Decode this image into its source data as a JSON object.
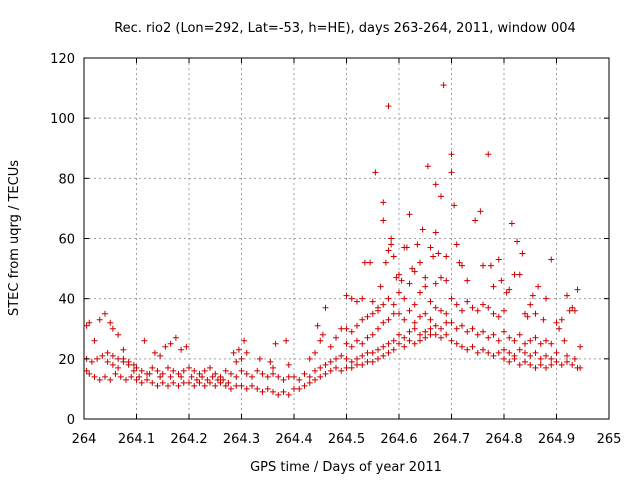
{
  "chart_data": {
    "type": "scatter",
    "title": "Rec. rio2 (Lon=292, Lat=-53, h=HE), days 263-264, 2011, window 004",
    "xlabel": "GPS time / Days of year 2011",
    "ylabel": "STEC from uqrg / TECUs",
    "xlim": [
      264,
      265
    ],
    "ylim": [
      0,
      120
    ],
    "x_ticks": [
      264,
      264.1,
      264.2,
      264.3,
      264.4,
      264.5,
      264.6,
      264.7,
      264.8,
      264.9,
      265
    ],
    "x_tick_labels": [
      "264",
      "264.1",
      "264.2",
      "264.3",
      "264.4",
      "264.5",
      "264.6",
      "264.7",
      "264.8",
      "264.9",
      "265"
    ],
    "y_ticks": [
      0,
      20,
      40,
      60,
      80,
      100,
      120
    ],
    "y_tick_labels": [
      "0",
      "20",
      "40",
      "60",
      "80",
      "100",
      "120"
    ],
    "grid": true,
    "marker": "+",
    "color": "#cc0000",
    "points": [
      [
        264.005,
        31
      ],
      [
        264.01,
        32
      ],
      [
        264.02,
        26
      ],
      [
        264.03,
        33
      ],
      [
        264.04,
        35
      ],
      [
        264.05,
        32
      ],
      [
        264.055,
        30
      ],
      [
        264.065,
        28
      ],
      [
        264.075,
        23
      ],
      [
        264.005,
        20
      ],
      [
        264.015,
        19
      ],
      [
        264.025,
        20
      ],
      [
        264.035,
        21
      ],
      [
        264.045,
        22
      ],
      [
        264.055,
        21
      ],
      [
        264.065,
        20
      ],
      [
        264.075,
        20
      ],
      [
        264.085,
        19
      ],
      [
        264.095,
        18
      ],
      [
        264.005,
        16
      ],
      [
        264.01,
        15
      ],
      [
        264.02,
        14
      ],
      [
        264.03,
        13
      ],
      [
        264.04,
        14
      ],
      [
        264.05,
        13
      ],
      [
        264.06,
        15
      ],
      [
        264.07,
        14
      ],
      [
        264.08,
        13
      ],
      [
        264.09,
        14
      ],
      [
        264.045,
        19
      ],
      [
        264.055,
        18
      ],
      [
        264.065,
        17
      ],
      [
        264.075,
        19
      ],
      [
        264.085,
        18
      ],
      [
        264.095,
        16
      ],
      [
        264.1,
        17
      ],
      [
        264.11,
        16
      ],
      [
        264.12,
        15
      ],
      [
        264.13,
        17
      ],
      [
        264.14,
        16
      ],
      [
        264.15,
        15
      ],
      [
        264.16,
        17
      ],
      [
        264.17,
        16
      ],
      [
        264.18,
        15
      ],
      [
        264.19,
        16
      ],
      [
        264.1,
        13
      ],
      [
        264.11,
        12
      ],
      [
        264.12,
        13
      ],
      [
        264.13,
        12
      ],
      [
        264.14,
        11
      ],
      [
        264.15,
        12
      ],
      [
        264.16,
        11
      ],
      [
        264.17,
        12
      ],
      [
        264.18,
        11
      ],
      [
        264.19,
        12
      ],
      [
        264.115,
        26
      ],
      [
        264.135,
        22
      ],
      [
        264.145,
        21
      ],
      [
        264.155,
        24
      ],
      [
        264.165,
        25
      ],
      [
        264.175,
        27
      ],
      [
        264.185,
        23
      ],
      [
        264.195,
        24
      ],
      [
        264.105,
        14
      ],
      [
        264.125,
        15
      ],
      [
        264.145,
        14
      ],
      [
        264.165,
        14
      ],
      [
        264.185,
        14
      ],
      [
        264.2,
        17
      ],
      [
        264.21,
        16
      ],
      [
        264.22,
        15
      ],
      [
        264.23,
        16
      ],
      [
        264.24,
        17
      ],
      [
        264.25,
        15
      ],
      [
        264.26,
        14
      ],
      [
        264.27,
        16
      ],
      [
        264.28,
        15
      ],
      [
        264.29,
        14
      ],
      [
        264.2,
        12
      ],
      [
        264.21,
        11
      ],
      [
        264.22,
        12
      ],
      [
        264.23,
        11
      ],
      [
        264.24,
        12
      ],
      [
        264.25,
        11
      ],
      [
        264.26,
        12
      ],
      [
        264.27,
        11
      ],
      [
        264.28,
        10
      ],
      [
        264.29,
        11
      ],
      [
        264.205,
        14
      ],
      [
        264.215,
        13
      ],
      [
        264.225,
        14
      ],
      [
        264.235,
        13
      ],
      [
        264.245,
        14
      ],
      [
        264.255,
        13
      ],
      [
        264.265,
        13
      ],
      [
        264.275,
        12
      ],
      [
        264.285,
        22
      ],
      [
        264.295,
        23
      ],
      [
        264.305,
        26
      ],
      [
        264.31,
        22
      ],
      [
        264.29,
        19
      ],
      [
        264.3,
        20
      ],
      [
        264.3,
        16
      ],
      [
        264.31,
        15
      ],
      [
        264.32,
        14
      ],
      [
        264.33,
        16
      ],
      [
        264.34,
        15
      ],
      [
        264.35,
        14
      ],
      [
        264.36,
        15
      ],
      [
        264.37,
        14
      ],
      [
        264.38,
        13
      ],
      [
        264.39,
        14
      ],
      [
        264.3,
        11
      ],
      [
        264.31,
        10
      ],
      [
        264.32,
        11
      ],
      [
        264.33,
        10
      ],
      [
        264.34,
        9
      ],
      [
        264.35,
        10
      ],
      [
        264.36,
        9
      ],
      [
        264.37,
        8
      ],
      [
        264.38,
        9
      ],
      [
        264.39,
        8
      ],
      [
        264.335,
        20
      ],
      [
        264.355,
        19
      ],
      [
        264.365,
        25
      ],
      [
        264.385,
        26
      ],
      [
        264.36,
        17
      ],
      [
        264.39,
        18
      ],
      [
        264.4,
        14
      ],
      [
        264.41,
        13
      ],
      [
        264.42,
        15
      ],
      [
        264.43,
        14
      ],
      [
        264.44,
        16
      ],
      [
        264.45,
        17
      ],
      [
        264.46,
        18
      ],
      [
        264.47,
        19
      ],
      [
        264.48,
        20
      ],
      [
        264.49,
        21
      ],
      [
        264.4,
        10
      ],
      [
        264.41,
        10
      ],
      [
        264.42,
        11
      ],
      [
        264.43,
        12
      ],
      [
        264.44,
        13
      ],
      [
        264.45,
        14
      ],
      [
        264.46,
        15
      ],
      [
        264.47,
        16
      ],
      [
        264.48,
        17
      ],
      [
        264.49,
        16
      ],
      [
        264.43,
        20
      ],
      [
        264.44,
        22
      ],
      [
        264.45,
        26
      ],
      [
        264.455,
        28
      ],
      [
        264.46,
        37
      ],
      [
        264.47,
        24
      ],
      [
        264.48,
        27
      ],
      [
        264.49,
        30
      ],
      [
        264.445,
        31
      ],
      [
        264.5,
        41
      ],
      [
        264.51,
        40
      ],
      [
        264.52,
        39
      ],
      [
        264.53,
        40
      ],
      [
        264.535,
        52
      ],
      [
        264.545,
        52
      ],
      [
        264.55,
        39
      ],
      [
        264.555,
        82
      ],
      [
        264.56,
        37
      ],
      [
        264.565,
        44
      ],
      [
        264.57,
        66
      ],
      [
        264.57,
        72
      ],
      [
        264.575,
        52
      ],
      [
        264.58,
        56
      ],
      [
        264.58,
        104
      ],
      [
        264.585,
        58
      ],
      [
        264.585,
        60
      ],
      [
        264.59,
        54
      ],
      [
        264.595,
        47
      ],
      [
        264.5,
        30
      ],
      [
        264.51,
        29
      ],
      [
        264.52,
        31
      ],
      [
        264.53,
        33
      ],
      [
        264.54,
        34
      ],
      [
        264.55,
        35
      ],
      [
        264.56,
        36
      ],
      [
        264.57,
        38
      ],
      [
        264.58,
        40
      ],
      [
        264.59,
        38
      ],
      [
        264.5,
        25
      ],
      [
        264.51,
        24
      ],
      [
        264.52,
        26
      ],
      [
        264.53,
        25
      ],
      [
        264.54,
        27
      ],
      [
        264.55,
        28
      ],
      [
        264.56,
        30
      ],
      [
        264.57,
        32
      ],
      [
        264.58,
        33
      ],
      [
        264.59,
        35
      ],
      [
        264.5,
        20
      ],
      [
        264.51,
        19
      ],
      [
        264.52,
        20
      ],
      [
        264.53,
        21
      ],
      [
        264.54,
        22
      ],
      [
        264.55,
        22
      ],
      [
        264.56,
        23
      ],
      [
        264.57,
        24
      ],
      [
        264.58,
        25
      ],
      [
        264.59,
        26
      ],
      [
        264.5,
        17
      ],
      [
        264.51,
        17
      ],
      [
        264.52,
        18
      ],
      [
        264.53,
        18
      ],
      [
        264.54,
        19
      ],
      [
        264.55,
        19
      ],
      [
        264.56,
        20
      ],
      [
        264.57,
        21
      ],
      [
        264.58,
        22
      ],
      [
        264.59,
        23
      ],
      [
        264.6,
        48
      ],
      [
        264.605,
        46
      ],
      [
        264.61,
        57
      ],
      [
        264.615,
        57
      ],
      [
        264.62,
        68
      ],
      [
        264.625,
        50
      ],
      [
        264.63,
        49
      ],
      [
        264.635,
        58
      ],
      [
        264.64,
        52
      ],
      [
        264.645,
        63
      ],
      [
        264.65,
        47
      ],
      [
        264.655,
        84
      ],
      [
        264.66,
        57
      ],
      [
        264.665,
        54
      ],
      [
        264.67,
        78
      ],
      [
        264.67,
        62
      ],
      [
        264.675,
        55
      ],
      [
        264.68,
        74
      ],
      [
        264.685,
        111
      ],
      [
        264.69,
        54
      ],
      [
        264.6,
        42
      ],
      [
        264.61,
        40
      ],
      [
        264.62,
        45
      ],
      [
        264.63,
        38
      ],
      [
        264.64,
        42
      ],
      [
        264.65,
        44
      ],
      [
        264.66,
        39
      ],
      [
        264.67,
        45
      ],
      [
        264.68,
        47
      ],
      [
        264.69,
        46
      ],
      [
        264.6,
        35
      ],
      [
        264.61,
        33
      ],
      [
        264.62,
        36
      ],
      [
        264.63,
        32
      ],
      [
        264.64,
        34
      ],
      [
        264.65,
        35
      ],
      [
        264.66,
        33
      ],
      [
        264.67,
        37
      ],
      [
        264.68,
        36
      ],
      [
        264.69,
        35
      ],
      [
        264.6,
        28
      ],
      [
        264.61,
        27
      ],
      [
        264.62,
        29
      ],
      [
        264.63,
        30
      ],
      [
        264.64,
        28
      ],
      [
        264.65,
        29
      ],
      [
        264.66,
        30
      ],
      [
        264.67,
        31
      ],
      [
        264.68,
        30
      ],
      [
        264.69,
        32
      ],
      [
        264.6,
        25
      ],
      [
        264.61,
        24
      ],
      [
        264.62,
        26
      ],
      [
        264.63,
        25
      ],
      [
        264.64,
        26
      ],
      [
        264.65,
        27
      ],
      [
        264.66,
        28
      ],
      [
        264.67,
        28
      ],
      [
        264.68,
        27
      ],
      [
        264.69,
        28
      ],
      [
        264.7,
        88
      ],
      [
        264.7,
        82
      ],
      [
        264.705,
        71
      ],
      [
        264.71,
        58
      ],
      [
        264.715,
        52
      ],
      [
        264.72,
        51
      ],
      [
        264.73,
        46
      ],
      [
        264.745,
        66
      ],
      [
        264.755,
        69
      ],
      [
        264.76,
        51
      ],
      [
        264.77,
        88
      ],
      [
        264.775,
        51
      ],
      [
        264.78,
        44
      ],
      [
        264.79,
        53
      ],
      [
        264.795,
        46
      ],
      [
        264.7,
        40
      ],
      [
        264.71,
        38
      ],
      [
        264.72,
        36
      ],
      [
        264.73,
        39
      ],
      [
        264.74,
        37
      ],
      [
        264.75,
        36
      ],
      [
        264.76,
        38
      ],
      [
        264.77,
        37
      ],
      [
        264.78,
        35
      ],
      [
        264.79,
        34
      ],
      [
        264.7,
        32
      ],
      [
        264.71,
        30
      ],
      [
        264.72,
        31
      ],
      [
        264.73,
        29
      ],
      [
        264.74,
        30
      ],
      [
        264.75,
        28
      ],
      [
        264.76,
        29
      ],
      [
        264.77,
        27
      ],
      [
        264.78,
        28
      ],
      [
        264.79,
        26
      ],
      [
        264.7,
        26
      ],
      [
        264.71,
        25
      ],
      [
        264.72,
        24
      ],
      [
        264.73,
        23
      ],
      [
        264.74,
        24
      ],
      [
        264.75,
        22
      ],
      [
        264.76,
        23
      ],
      [
        264.77,
        22
      ],
      [
        264.78,
        21
      ],
      [
        264.79,
        22
      ],
      [
        264.8,
        36
      ],
      [
        264.805,
        42
      ],
      [
        264.81,
        43
      ],
      [
        264.815,
        65
      ],
      [
        264.82,
        48
      ],
      [
        264.825,
        59
      ],
      [
        264.83,
        48
      ],
      [
        264.835,
        55
      ],
      [
        264.84,
        35
      ],
      [
        264.845,
        34
      ],
      [
        264.85,
        38
      ],
      [
        264.855,
        41
      ],
      [
        264.86,
        35
      ],
      [
        264.865,
        44
      ],
      [
        264.875,
        33
      ],
      [
        264.88,
        40
      ],
      [
        264.89,
        53
      ],
      [
        264.8,
        29
      ],
      [
        264.81,
        27
      ],
      [
        264.82,
        26
      ],
      [
        264.83,
        28
      ],
      [
        264.84,
        25
      ],
      [
        264.85,
        26
      ],
      [
        264.86,
        27
      ],
      [
        264.87,
        25
      ],
      [
        264.88,
        26
      ],
      [
        264.89,
        25
      ],
      [
        264.8,
        23
      ],
      [
        264.81,
        22
      ],
      [
        264.82,
        21
      ],
      [
        264.83,
        23
      ],
      [
        264.84,
        22
      ],
      [
        264.85,
        21
      ],
      [
        264.86,
        22
      ],
      [
        264.87,
        20
      ],
      [
        264.88,
        21
      ],
      [
        264.89,
        20
      ],
      [
        264.8,
        20
      ],
      [
        264.81,
        19
      ],
      [
        264.82,
        20
      ],
      [
        264.83,
        18
      ],
      [
        264.84,
        19
      ],
      [
        264.85,
        18
      ],
      [
        264.86,
        17
      ],
      [
        264.87,
        18
      ],
      [
        264.88,
        17
      ],
      [
        264.89,
        18
      ],
      [
        264.9,
        32
      ],
      [
        264.905,
        30
      ],
      [
        264.91,
        33
      ],
      [
        264.915,
        26
      ],
      [
        264.92,
        41
      ],
      [
        264.925,
        36
      ],
      [
        264.93,
        37
      ],
      [
        264.935,
        36
      ],
      [
        264.94,
        43
      ],
      [
        264.945,
        24
      ],
      [
        264.9,
        19
      ],
      [
        264.91,
        18
      ],
      [
        264.92,
        19
      ],
      [
        264.93,
        18
      ],
      [
        264.94,
        17
      ],
      [
        264.945,
        17
      ],
      [
        264.9,
        22
      ],
      [
        264.92,
        21
      ],
      [
        264.935,
        20
      ]
    ]
  }
}
